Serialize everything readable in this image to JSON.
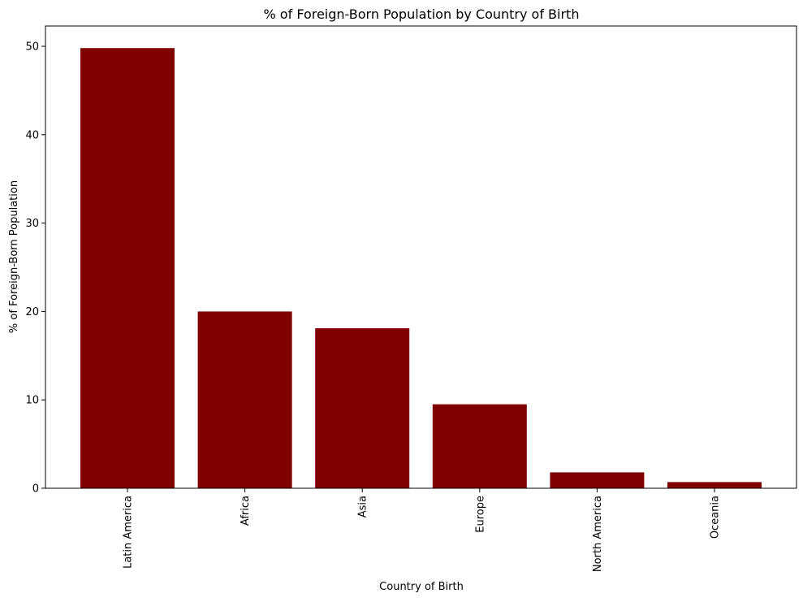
{
  "chart_data": {
    "type": "bar",
    "title": "% of Foreign-Born Population by Country of Birth",
    "xlabel": "Country of Birth",
    "ylabel": "% of Foreign-Born Population",
    "categories": [
      "Latin America",
      "Africa",
      "Asia",
      "Europe",
      "North America",
      "Oceania"
    ],
    "values": [
      49.8,
      20.0,
      18.1,
      9.5,
      1.8,
      0.7
    ],
    "ylim": [
      0,
      52.3
    ],
    "yticks": [
      0,
      10,
      20,
      30,
      40,
      50
    ],
    "bar_color": "#800000",
    "grid": false,
    "legend": "none"
  }
}
